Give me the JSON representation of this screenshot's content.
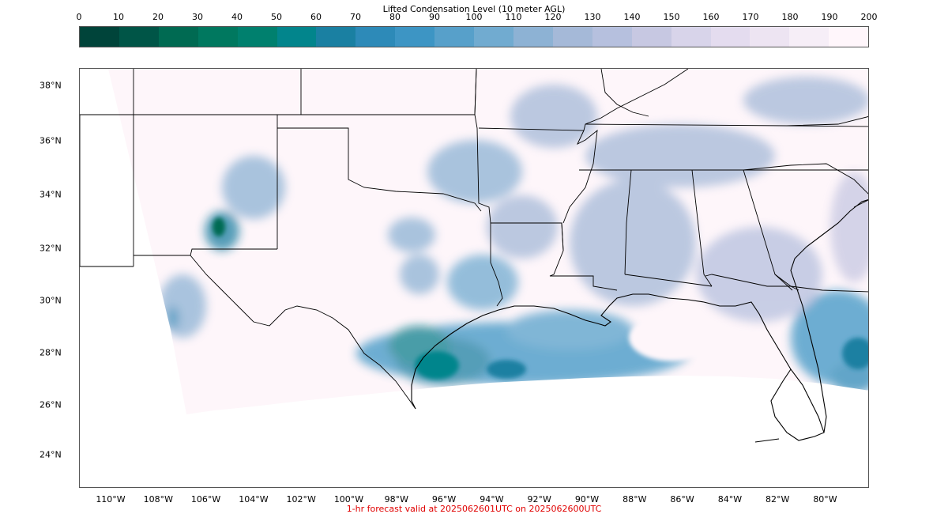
{
  "title": "Lifted Condensation Level (10 meter AGL)",
  "colorbar": {
    "ticks": [
      "0",
      "10",
      "20",
      "30",
      "40",
      "50",
      "60",
      "70",
      "80",
      "90",
      "100",
      "110",
      "120",
      "130",
      "140",
      "150",
      "160",
      "170",
      "180",
      "190",
      "200"
    ],
    "colors": [
      "#00443a",
      "#005547",
      "#006a52",
      "#00785f",
      "#00806e",
      "#02858c",
      "#1a80a2",
      "#2d8ab8",
      "#3d95c4",
      "#57a0ca",
      "#71abd0",
      "#8db2d4",
      "#a5b9d8",
      "#b6c0de",
      "#c7c8e2",
      "#d8d4ea",
      "#e4dcef",
      "#ede4f2",
      "#f6eef7",
      "#fff6fb"
    ]
  },
  "map": {
    "lat_labels": [
      "38°N",
      "36°N",
      "34°N",
      "32°N",
      "30°N",
      "28°N",
      "26°N",
      "24°N"
    ],
    "lon_labels": [
      "110°W",
      "108°W",
      "106°W",
      "104°W",
      "102°W",
      "100°W",
      "98°W",
      "96°W",
      "94°W",
      "92°W",
      "90°W",
      "88°W",
      "86°W",
      "84°W",
      "82°W",
      "80°W"
    ],
    "background_color": "#fef6fa",
    "border_color": "#000000"
  },
  "footer": "1-hr forecast valid at 2025062601UTC on 2025062600UTC"
}
